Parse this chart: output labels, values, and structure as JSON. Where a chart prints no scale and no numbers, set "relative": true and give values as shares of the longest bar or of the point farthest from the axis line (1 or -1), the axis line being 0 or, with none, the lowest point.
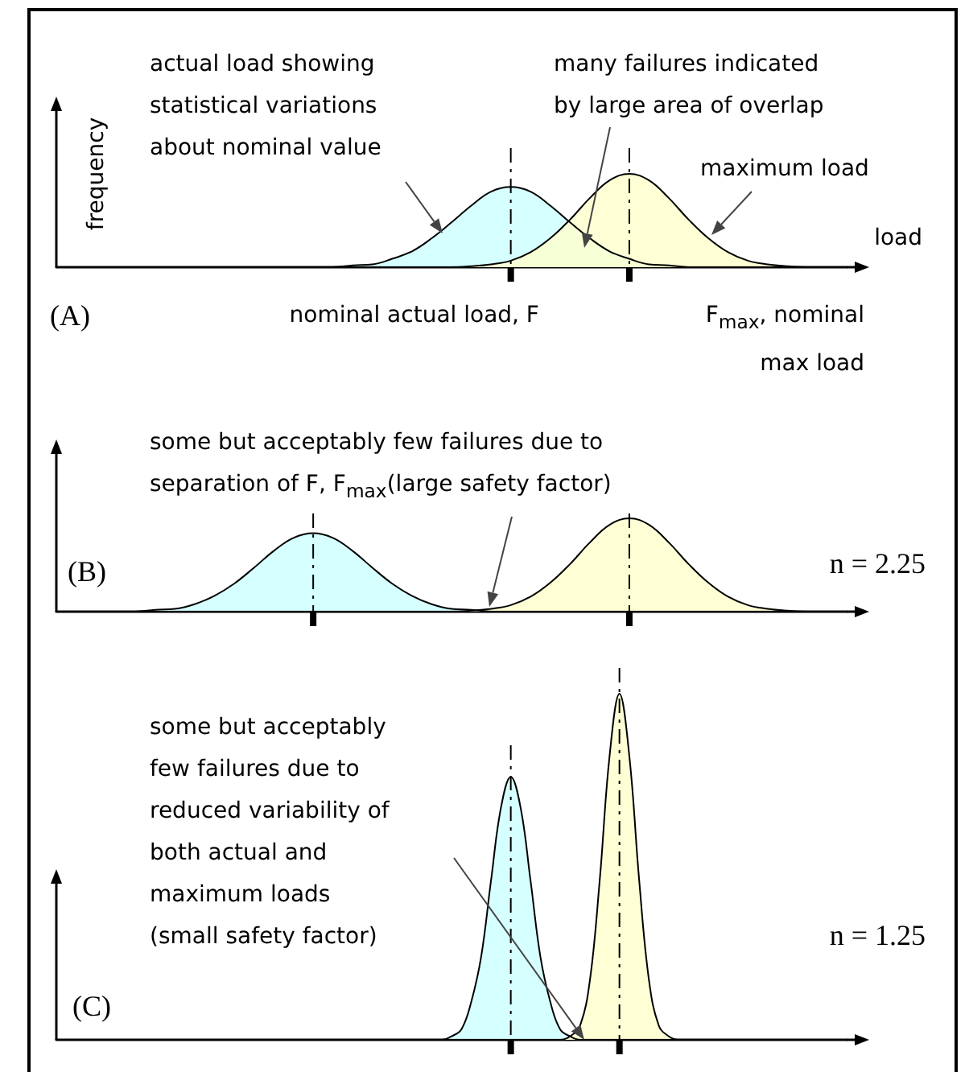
{
  "chart_data": [
    {
      "type": "area",
      "title": "(A)",
      "xlabel": "load",
      "ylabel": "frequency",
      "relative": true,
      "categories": [
        null,
        null,
        null,
        null,
        null,
        null,
        null,
        null,
        null,
        null,
        null,
        null,
        null,
        null,
        null,
        null,
        null,
        null,
        null,
        null,
        null,
        null,
        null,
        null,
        null,
        null,
        null,
        null,
        null,
        null,
        null,
        null,
        null,
        null,
        null,
        null,
        null,
        null,
        null,
        null,
        null
      ],
      "series": [
        {
          "color": "#ccffff",
          "values": [
            0,
            0,
            0,
            0,
            0,
            0,
            0,
            0,
            0,
            0,
            0,
            0,
            0,
            0,
            0,
            0.02,
            0.03,
            0.09,
            0.17,
            0.31,
            0.48,
            0.66,
            0.81,
            0.86,
            0.81,
            0.66,
            0.48,
            0.31,
            0.17,
            0.09,
            0.03,
            0.02,
            0,
            0,
            0,
            0,
            0,
            0,
            0,
            0,
            0
          ]
        },
        {
          "color": "#ffffcc",
          "values": [
            0,
            0,
            0,
            0,
            0,
            0,
            0,
            0,
            0,
            0,
            0,
            0,
            0,
            0,
            0,
            0,
            0,
            0,
            0,
            0,
            0,
            0.01,
            0.03,
            0.07,
            0.16,
            0.31,
            0.51,
            0.74,
            0.93,
            1,
            0.93,
            0.74,
            0.51,
            0.31,
            0.16,
            0.07,
            0.03,
            0.01,
            0,
            0,
            0
          ]
        }
      ],
      "annotations": [
        "actual load showing\nstatistical variations\nabout nominal value",
        "many failures indicated\nby large area of overlap",
        "maximum load",
        "nominal actual load, F",
        "F$_{max}$, nominal\nmax load"
      ]
    },
    {
      "type": "area",
      "title": "(B)",
      "relative": true,
      "categories": [
        null,
        null,
        null,
        null,
        null,
        null,
        null,
        null,
        null,
        null,
        null,
        null,
        null,
        null,
        null,
        null,
        null,
        null,
        null,
        null,
        null,
        null,
        null,
        null,
        null,
        null,
        null,
        null,
        null,
        null,
        null,
        null,
        null,
        null,
        null,
        null,
        null,
        null,
        null,
        null,
        null
      ],
      "series": [
        {
          "color": "#ccffff",
          "values": [
            0,
            0,
            0,
            0,
            0,
            0.02,
            0.03,
            0.08,
            0.17,
            0.3,
            0.47,
            0.65,
            0.79,
            0.84,
            0.79,
            0.65,
            0.47,
            0.3,
            0.17,
            0.08,
            0.03,
            0.02,
            0,
            0,
            0,
            0,
            0,
            0,
            0,
            0,
            0,
            0,
            0,
            0,
            0,
            0,
            0,
            0,
            0,
            0,
            0
          ]
        },
        {
          "color": "#ffffcc",
          "values": [
            0,
            0,
            0,
            0,
            0,
            0,
            0,
            0,
            0,
            0,
            0,
            0,
            0,
            0,
            0,
            0,
            0,
            0,
            0,
            0,
            0,
            0.01,
            0.03,
            0.07,
            0.16,
            0.31,
            0.51,
            0.74,
            0.93,
            1,
            0.93,
            0.74,
            0.51,
            0.31,
            0.16,
            0.07,
            0.03,
            0.01,
            0,
            0,
            0
          ]
        }
      ],
      "annotations": [
        "some but acceptably few failures due to\nseparation of F, F$_{max}$(large safety factor)",
        "n = 2.25"
      ]
    },
    {
      "type": "area",
      "title": "(C)",
      "relative": true,
      "categories": [
        null,
        null,
        null,
        null,
        null,
        null,
        null,
        null,
        null,
        null,
        null,
        null,
        null,
        null,
        null,
        null,
        null,
        null,
        null,
        null,
        null,
        null,
        null,
        null,
        null,
        null,
        null,
        null,
        null,
        null,
        null,
        null,
        null,
        null,
        null,
        null,
        null,
        null,
        null,
        null,
        null,
        null,
        null,
        null,
        null,
        null,
        null,
        null,
        null,
        null,
        null,
        null,
        null,
        null,
        null,
        null,
        null,
        null,
        null,
        null,
        null,
        null,
        null,
        null,
        null,
        null,
        null,
        null,
        null,
        null,
        null,
        null,
        null,
        null,
        null,
        null,
        null,
        null,
        null,
        null,
        null
      ],
      "series": [
        {
          "color": "#ccffff",
          "values": [
            0,
            0,
            0,
            0,
            0,
            0,
            0,
            0,
            0,
            0,
            0,
            0,
            0,
            0,
            0,
            0,
            0,
            0,
            0,
            0,
            0,
            0,
            0,
            0,
            0,
            0,
            0,
            0,
            0,
            0,
            0,
            0,
            0,
            0,
            0,
            0,
            0,
            0,
            0,
            0,
            0.01,
            0.03,
            0.11,
            0.24,
            0.46,
            0.67,
            0.76,
            0.67,
            0.46,
            0.24,
            0.11,
            0.03,
            0.01,
            0,
            0,
            0,
            0,
            0,
            0,
            0,
            0,
            0,
            0,
            0,
            0,
            0,
            0,
            0,
            0,
            0,
            0,
            0,
            0,
            0,
            0,
            0,
            0,
            0,
            0,
            0,
            0
          ]
        },
        {
          "color": "#ffffcc",
          "values": [
            0,
            0,
            0,
            0,
            0,
            0,
            0,
            0,
            0,
            0,
            0,
            0,
            0,
            0,
            0,
            0,
            0,
            0,
            0,
            0,
            0,
            0,
            0,
            0,
            0,
            0,
            0,
            0,
            0,
            0,
            0,
            0,
            0,
            0,
            0,
            0,
            0,
            0,
            0,
            0,
            0,
            0,
            0,
            0,
            0,
            0,
            0,
            0,
            0,
            0,
            0,
            0,
            0.01,
            0.04,
            0.17,
            0.46,
            0.82,
            1,
            0.82,
            0.46,
            0.17,
            0.04,
            0.01,
            0,
            0,
            0,
            0,
            0,
            0,
            0,
            0,
            0,
            0,
            0,
            0,
            0,
            0,
            0,
            0,
            0,
            0
          ]
        }
      ],
      "annotations": [
        "some but acceptably\nfew failures due to\nreduced variability of\nboth actual and\nmaximum loads\n(small safety factor)",
        "n = 1.25"
      ]
    }
  ]
}
